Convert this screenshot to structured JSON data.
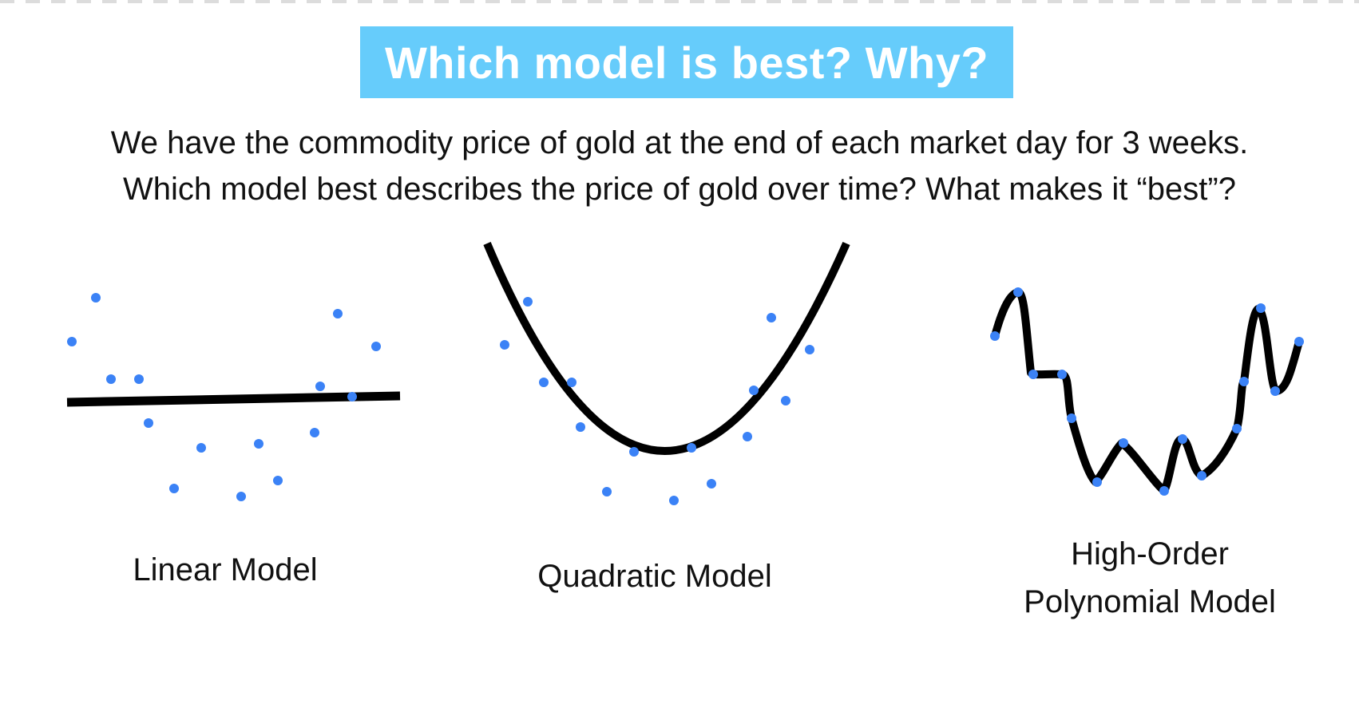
{
  "title": "Which model is best? Why?",
  "question": {
    "line1": "We have the commodity price of gold at the end of each market day for 3 weeks.",
    "line2": "Which model best describes the price of gold over time? What makes it “best”?"
  },
  "models": [
    {
      "key": "linear",
      "label": "Linear Model"
    },
    {
      "key": "quadratic",
      "label": "Quadratic Model"
    },
    {
      "key": "polynomial",
      "label_line1": "High-Order",
      "label_line2": "Polynomial Model"
    }
  ],
  "colors": {
    "banner": "#66ccfb",
    "banner_text": "#ffffff",
    "points": "#3b82f6",
    "curve": "#000000"
  }
}
